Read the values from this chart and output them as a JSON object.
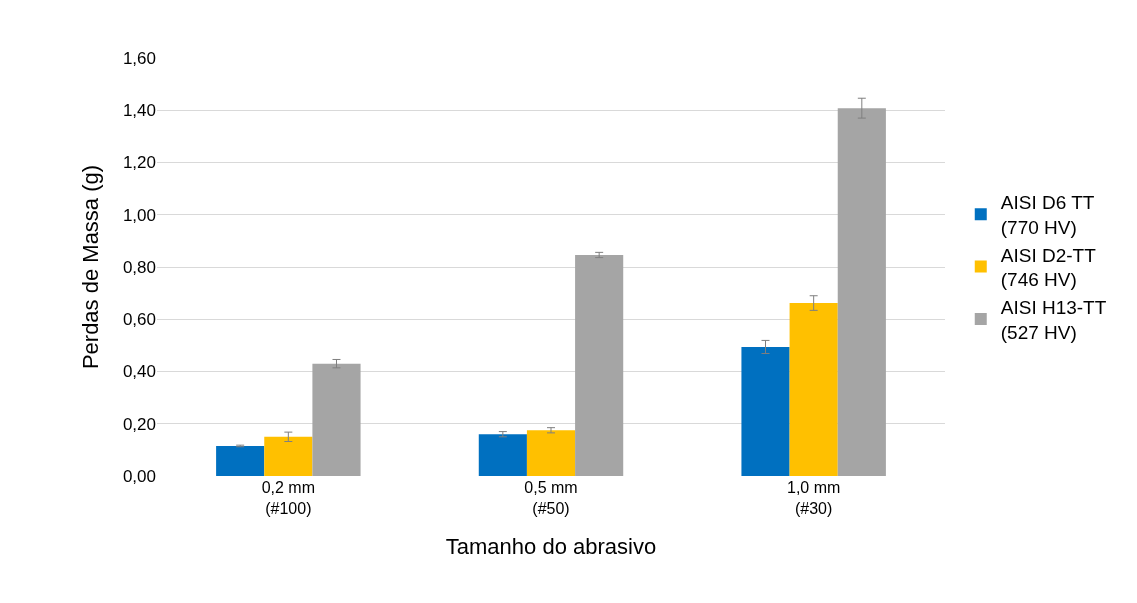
{
  "chart_data": {
    "type": "bar",
    "xlabel": "Tamanho do abrasivo",
    "ylabel": "Perdas de Massa (g)",
    "categories": [
      "0,2 mm\n(#100)",
      "0,5 mm\n(#50)",
      "1,0 mm\n(#30)"
    ],
    "series": [
      {
        "name": "AISI D6 TT\n(770 HV)",
        "color": "#0070c0",
        "values": [
          0.115,
          0.16,
          0.494
        ],
        "errors": [
          0.003,
          0.01,
          0.025
        ]
      },
      {
        "name": "AISI D2-TT\n(746 HV)",
        "color": "#ffc000",
        "values": [
          0.15,
          0.175,
          0.662
        ],
        "errors": [
          0.018,
          0.01,
          0.028
        ]
      },
      {
        "name": "AISI H13-TT\n(527 HV)",
        "color": "#a5a5a5",
        "values": [
          0.43,
          0.846,
          1.408
        ],
        "errors": [
          0.016,
          0.01,
          0.038
        ]
      }
    ],
    "ylim": [
      0,
      1.6
    ],
    "yticks": [
      {
        "value": 0,
        "label": "0,00"
      },
      {
        "value": 0.2,
        "label": "0,20"
      },
      {
        "value": 0.4,
        "label": "0,40"
      },
      {
        "value": 0.6,
        "label": "0,60"
      },
      {
        "value": 0.8,
        "label": "0,80"
      },
      {
        "value": 1,
        "label": "1,00"
      },
      {
        "value": 1.2,
        "label": "1,20"
      },
      {
        "value": 1.4,
        "label": "1,40"
      },
      {
        "value": 1.6,
        "label": "1,60"
      }
    ],
    "grid": "y",
    "legend": "right"
  }
}
